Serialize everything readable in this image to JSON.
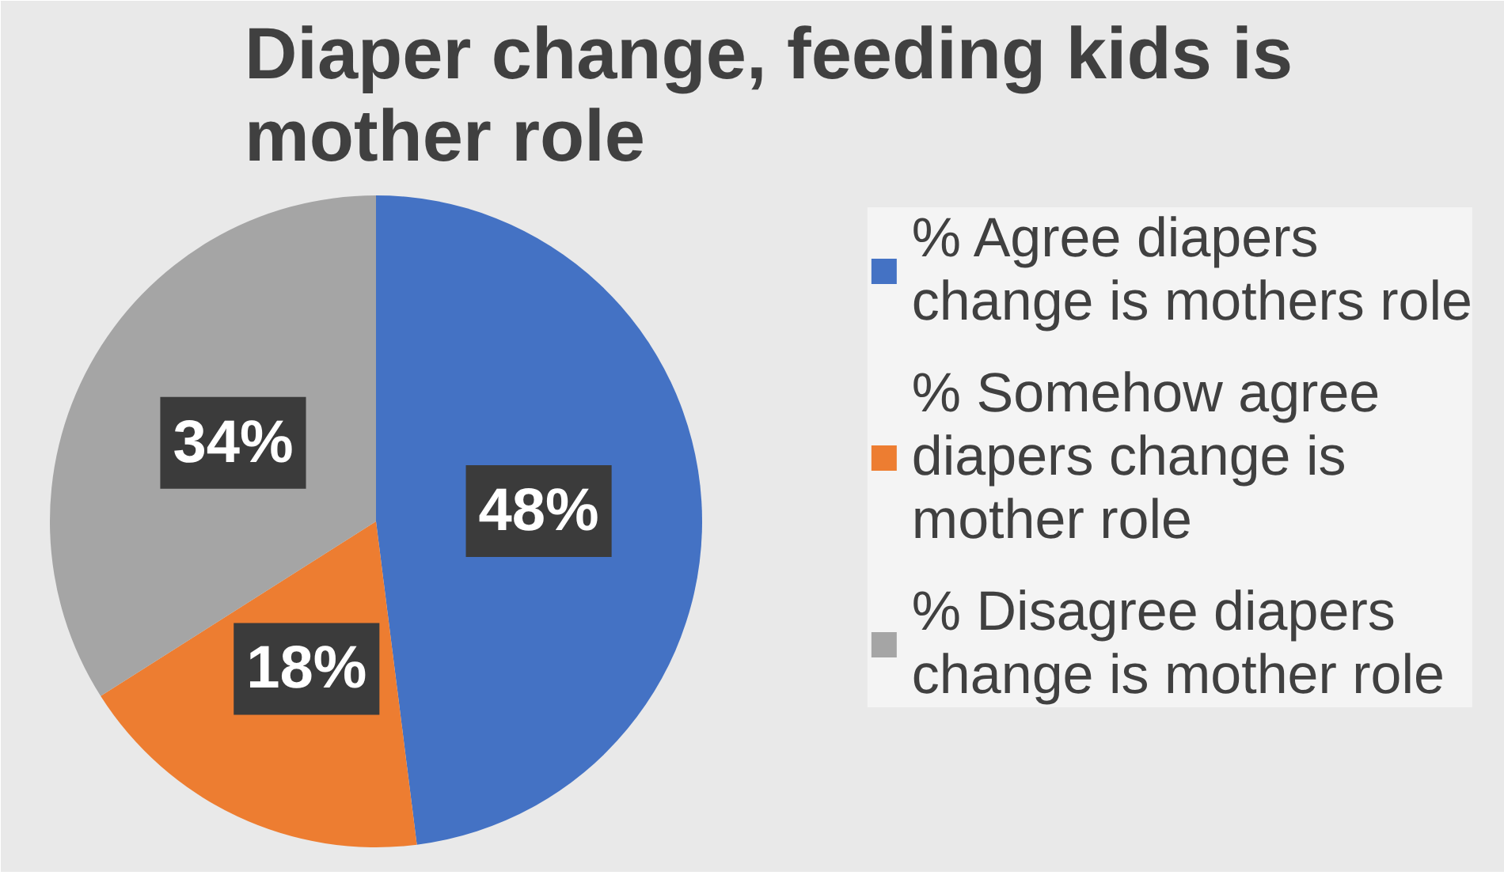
{
  "chart_data": {
    "type": "pie",
    "title": "Diaper change, feeding kids is mother role",
    "categories": [
      "% Agree diapers change is mothers role",
      "% Somehow agree diapers change is mother role",
      "% Disagree diapers change is mother role"
    ],
    "values": [
      48,
      18,
      34
    ],
    "colors": [
      "#4472c4",
      "#ed7d31",
      "#a5a5a5"
    ],
    "value_labels": [
      "48%",
      "18%",
      "34%"
    ],
    "legend": "right"
  }
}
